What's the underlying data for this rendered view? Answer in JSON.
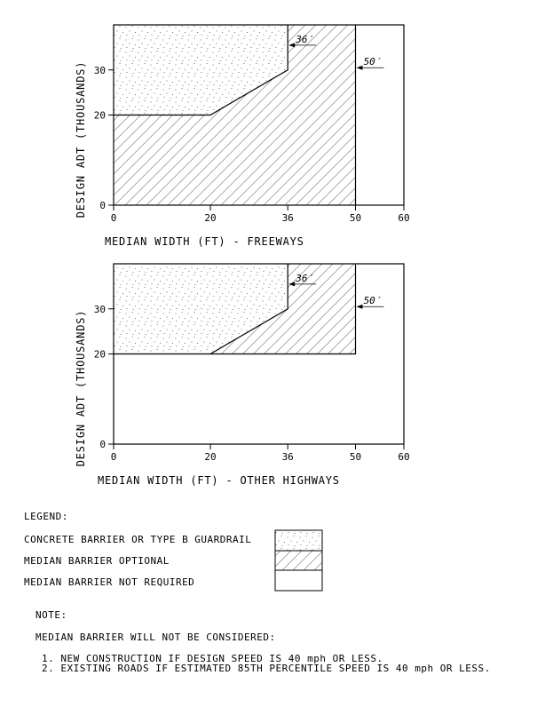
{
  "chart_data": [
    {
      "type": "area",
      "xlabel": "MEDIAN WIDTH (FT) - FREEWAYS",
      "ylabel": "DESIGN ADT (THOUSANDS)",
      "xlim": [
        0,
        60
      ],
      "ylim": [
        0,
        40
      ],
      "x_ticks": [
        "0",
        "20",
        "36",
        "50",
        "60"
      ],
      "y_ticks": [
        "0",
        "20",
        "30"
      ],
      "regions": [
        {
          "name": "CONCRETE BARRIER OR TYPE B GUARDRAIL",
          "polygon": [
            [
              0,
              20
            ],
            [
              20,
              20
            ],
            [
              36,
              30
            ],
            [
              36,
              40
            ],
            [
              0,
              40
            ]
          ]
        },
        {
          "name": "MEDIAN BARRIER OPTIONAL",
          "polygon": [
            [
              0,
              0
            ],
            [
              50,
              0
            ],
            [
              50,
              40
            ],
            [
              36,
              40
            ],
            [
              36,
              30
            ],
            [
              20,
              20
            ],
            [
              0,
              20
            ]
          ]
        },
        {
          "name": "MEDIAN BARRIER NOT REQUIRED",
          "polygon": [
            [
              50,
              0
            ],
            [
              60,
              0
            ],
            [
              60,
              40
            ],
            [
              50,
              40
            ]
          ]
        }
      ],
      "annotations": [
        {
          "text": "36′",
          "x": 36,
          "y": 35.5
        },
        {
          "text": "50′",
          "x": 50,
          "y": 30.5
        }
      ]
    },
    {
      "type": "area",
      "xlabel": "MEDIAN WIDTH (FT) - OTHER HIGHWAYS",
      "ylabel": "DESIGN ADT (THOUSANDS)",
      "xlim": [
        0,
        60
      ],
      "ylim": [
        0,
        40
      ],
      "x_ticks": [
        "0",
        "20",
        "36",
        "50",
        "60"
      ],
      "y_ticks": [
        "0",
        "20",
        "30"
      ],
      "regions": [
        {
          "name": "CONCRETE BARRIER OR TYPE B GUARDRAIL",
          "polygon": [
            [
              0,
              20
            ],
            [
              20,
              20
            ],
            [
              36,
              30
            ],
            [
              36,
              40
            ],
            [
              0,
              40
            ]
          ]
        },
        {
          "name": "MEDIAN BARRIER OPTIONAL",
          "polygon": [
            [
              20,
              20
            ],
            [
              50,
              20
            ],
            [
              50,
              40
            ],
            [
              36,
              40
            ],
            [
              36,
              30
            ]
          ]
        },
        {
          "name": "MEDIAN BARRIER NOT REQUIRED",
          "polygon": [
            [
              0,
              0
            ],
            [
              60,
              0
            ],
            [
              60,
              40
            ],
            [
              50,
              40
            ],
            [
              50,
              20
            ],
            [
              0,
              20
            ]
          ]
        }
      ],
      "annotations": [
        {
          "text": "36′",
          "x": 36,
          "y": 35.5
        },
        {
          "text": "50′",
          "x": 50,
          "y": 30.5
        }
      ]
    }
  ],
  "legend": {
    "title": "LEGEND:",
    "items": [
      {
        "label": "CONCRETE BARRIER OR TYPE B GUARDRAIL",
        "pattern": "stipple"
      },
      {
        "label": "MEDIAN BARRIER OPTIONAL",
        "pattern": "hatch"
      },
      {
        "label": "MEDIAN BARRIER NOT REQUIRED",
        "pattern": "blank"
      }
    ]
  },
  "note": {
    "title": "NOTE:",
    "intro": "MEDIAN BARRIER WILL NOT BE CONSIDERED:",
    "items": [
      "1. NEW CONSTRUCTION IF DESIGN SPEED IS 40 mph OR LESS.",
      "2. EXISTING ROADS IF ESTIMATED 85TH PERCENTILE SPEED IS 40 mph OR LESS."
    ]
  }
}
